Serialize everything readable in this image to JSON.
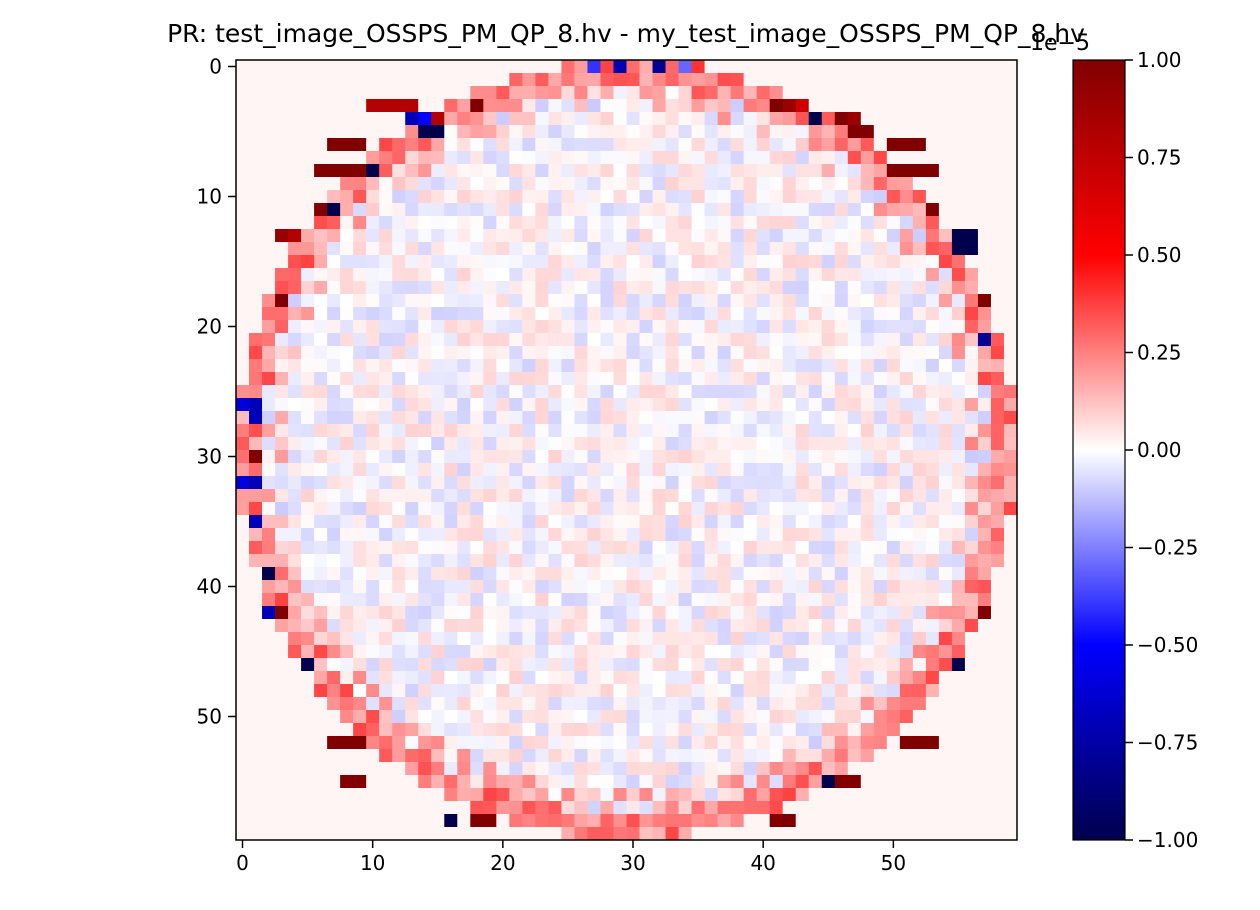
{
  "chart_data": {
    "type": "heatmap",
    "title": "PR: test_image_OSSPS_PM_QP_8.hv - my_test_image_OSSPS_PM_QP_8.hv",
    "xlabel": "",
    "ylabel": "",
    "grid": false,
    "shape": [
      60,
      60
    ],
    "xlim": [
      -0.5,
      59.5
    ],
    "ylim": [
      59.5,
      -0.5
    ],
    "xticks": [
      0,
      10,
      20,
      30,
      40,
      50
    ],
    "yticks": [
      0,
      10,
      20,
      30,
      40,
      50
    ],
    "colormap": "seismic",
    "colormap_stops": [
      "#00004c",
      "#0000ff",
      "#ffffff",
      "#ff0000",
      "#800000"
    ],
    "colorbar": {
      "range": [
        -1.0,
        1.0
      ],
      "ticks": [
        "1.00",
        "0.75",
        "0.50",
        "0.25",
        "0.00",
        "−0.25",
        "−0.50",
        "−0.75",
        "−1.00"
      ],
      "multiplier": "1e−5"
    },
    "cell_sample_note": "values in units of 1e-5; center region near 0 with small noise; strong deviations along the ring boundary",
    "values_rle_ring": [
      {
        "row": 0,
        "cols": [
          [
            27,
            -0.4
          ],
          [
            29,
            -0.7
          ],
          [
            32,
            -0.8
          ],
          [
            34,
            -0.3
          ],
          [
            35,
            0.4
          ]
        ]
      },
      {
        "row": 3,
        "cols": [
          [
            10,
            0.8
          ],
          [
            11,
            0.8
          ],
          [
            12,
            0.8
          ],
          [
            13,
            0.8
          ],
          [
            18,
            1.0
          ],
          [
            41,
            1.0
          ],
          [
            42,
            0.9
          ],
          [
            43,
            0.7
          ]
        ]
      },
      {
        "row": 4,
        "cols": [
          [
            13,
            -0.7
          ],
          [
            14,
            -0.5
          ],
          [
            15,
            0.8
          ],
          [
            44,
            -1.0
          ],
          [
            46,
            1.0
          ],
          [
            47,
            0.9
          ]
        ]
      },
      {
        "row": 5,
        "cols": [
          [
            14,
            -1.0
          ],
          [
            15,
            -1.0
          ],
          [
            47,
            1.0
          ],
          [
            48,
            1.0
          ]
        ]
      },
      {
        "row": 6,
        "cols": [
          [
            7,
            1.0
          ],
          [
            8,
            1.0
          ],
          [
            9,
            1.0
          ],
          [
            50,
            1.0
          ],
          [
            51,
            1.0
          ],
          [
            52,
            1.0
          ]
        ]
      },
      {
        "row": 8,
        "cols": [
          [
            6,
            1.0
          ],
          [
            7,
            1.0
          ],
          [
            8,
            1.0
          ],
          [
            9,
            1.0
          ],
          [
            10,
            -1.0
          ],
          [
            50,
            1.0
          ],
          [
            51,
            1.0
          ],
          [
            52,
            1.0
          ],
          [
            53,
            1.0
          ]
        ]
      },
      {
        "row": 11,
        "cols": [
          [
            6,
            1.0
          ],
          [
            7,
            -1.0
          ],
          [
            53,
            1.0
          ]
        ]
      },
      {
        "row": 13,
        "cols": [
          [
            3,
            0.9
          ],
          [
            4,
            0.8
          ],
          [
            55,
            -1.0
          ],
          [
            56,
            -1.0
          ]
        ]
      },
      {
        "row": 14,
        "cols": [
          [
            55,
            -1.0
          ],
          [
            56,
            -1.0
          ]
        ]
      },
      {
        "row": 18,
        "cols": [
          [
            3,
            1.0
          ],
          [
            57,
            1.0
          ]
        ]
      },
      {
        "row": 21,
        "cols": [
          [
            57,
            -0.8
          ]
        ]
      },
      {
        "row": 26,
        "cols": [
          [
            0,
            -0.6
          ],
          [
            1,
            -0.7
          ]
        ]
      },
      {
        "row": 27,
        "cols": [
          [
            1,
            -0.7
          ]
        ]
      },
      {
        "row": 30,
        "cols": [
          [
            1,
            1.0
          ]
        ]
      },
      {
        "row": 32,
        "cols": [
          [
            0,
            -0.6
          ],
          [
            1,
            -0.7
          ]
        ]
      },
      {
        "row": 35,
        "cols": [
          [
            1,
            -0.7
          ]
        ]
      },
      {
        "row": 39,
        "cols": [
          [
            2,
            -1.0
          ]
        ]
      },
      {
        "row": 42,
        "cols": [
          [
            2,
            -0.7
          ],
          [
            3,
            1.0
          ],
          [
            57,
            1.0
          ]
        ]
      },
      {
        "row": 46,
        "cols": [
          [
            5,
            -1.0
          ],
          [
            55,
            -1.0
          ]
        ]
      },
      {
        "row": 52,
        "cols": [
          [
            7,
            1.0
          ],
          [
            8,
            1.0
          ],
          [
            9,
            1.0
          ],
          [
            51,
            1.0
          ],
          [
            52,
            1.0
          ],
          [
            53,
            1.0
          ]
        ]
      },
      {
        "row": 55,
        "cols": [
          [
            8,
            1.0
          ],
          [
            9,
            1.0
          ],
          [
            45,
            -1.0
          ],
          [
            46,
            1.0
          ],
          [
            47,
            1.0
          ]
        ]
      },
      {
        "row": 58,
        "cols": [
          [
            16,
            -1.0
          ],
          [
            18,
            1.0
          ],
          [
            19,
            1.0
          ],
          [
            41,
            1.0
          ],
          [
            42,
            1.0
          ]
        ]
      }
    ]
  }
}
